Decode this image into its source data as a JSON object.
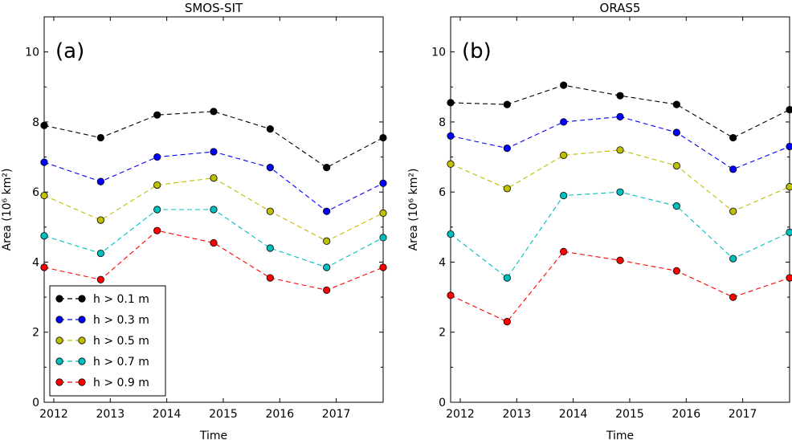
{
  "chart_data": [
    {
      "type": "line",
      "title": "SMOS-SIT",
      "panel_label": "(a)",
      "xlabel": "Time",
      "ylabel": "Area (10⁶ km²)",
      "xlim": [
        2011.83,
        2017.83
      ],
      "ylim": [
        0,
        11
      ],
      "xticks": [
        "2012",
        "2013",
        "2014",
        "2015",
        "2016",
        "2017"
      ],
      "yticks": [
        "0",
        "2",
        "4",
        "6",
        "8",
        "10"
      ],
      "x": [
        2011.83,
        2012.83,
        2013.83,
        2014.83,
        2015.83,
        2016.83,
        2017.83
      ],
      "legend": "lower-left",
      "series": [
        {
          "name": "h > 0.1 m",
          "color": "#000000",
          "values": [
            7.9,
            7.55,
            8.2,
            8.3,
            7.8,
            6.7,
            7.55
          ]
        },
        {
          "name": "h > 0.3 m",
          "color": "#0000ff",
          "values": [
            6.85,
            6.3,
            7.0,
            7.15,
            6.7,
            5.45,
            6.25
          ]
        },
        {
          "name": "h > 0.5 m",
          "color": "#bfbf00",
          "values": [
            5.9,
            5.2,
            6.2,
            6.4,
            5.45,
            4.6,
            5.4
          ]
        },
        {
          "name": "h > 0.7 m",
          "color": "#00bfbf",
          "values": [
            4.75,
            4.25,
            5.5,
            5.5,
            4.4,
            3.85,
            4.7
          ]
        },
        {
          "name": "h > 0.9 m",
          "color": "#ff0000",
          "values": [
            3.85,
            3.5,
            4.9,
            4.55,
            3.55,
            3.2,
            3.85
          ]
        }
      ]
    },
    {
      "type": "line",
      "title": "ORAS5",
      "panel_label": "(b)",
      "xlabel": "Time",
      "ylabel": "Area (10⁶ km²)",
      "xlim": [
        2011.83,
        2017.83
      ],
      "ylim": [
        0,
        11
      ],
      "xticks": [
        "2012",
        "2013",
        "2014",
        "2015",
        "2016",
        "2017"
      ],
      "yticks": [
        "0",
        "2",
        "4",
        "6",
        "8",
        "10"
      ],
      "x": [
        2011.83,
        2012.83,
        2013.83,
        2014.83,
        2015.83,
        2016.83,
        2017.83
      ],
      "series": [
        {
          "name": "h > 0.1 m",
          "color": "#000000",
          "values": [
            8.55,
            8.5,
            9.05,
            8.75,
            8.5,
            7.55,
            8.35
          ]
        },
        {
          "name": "h > 0.3 m",
          "color": "#0000ff",
          "values": [
            7.6,
            7.25,
            8.0,
            8.15,
            7.7,
            6.65,
            7.3
          ]
        },
        {
          "name": "h > 0.5 m",
          "color": "#bfbf00",
          "values": [
            6.8,
            6.1,
            7.05,
            7.2,
            6.75,
            5.45,
            6.15
          ]
        },
        {
          "name": "h > 0.7 m",
          "color": "#00bfbf",
          "values": [
            4.8,
            3.55,
            5.9,
            6.0,
            5.6,
            4.1,
            4.85
          ]
        },
        {
          "name": "h > 0.9 m",
          "color": "#ff0000",
          "values": [
            3.05,
            2.3,
            4.3,
            4.05,
            3.75,
            3.0,
            3.55
          ]
        }
      ]
    }
  ]
}
